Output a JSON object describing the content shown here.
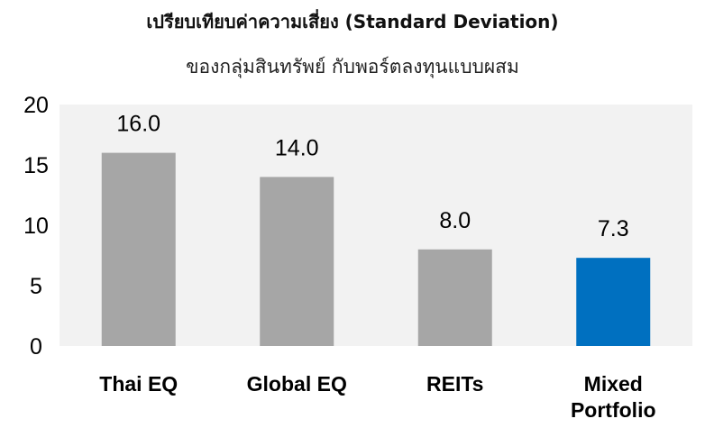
{
  "chart_data": {
    "type": "bar",
    "title": "เปรียบเทียบค่าความเสี่ยง (Standard Deviation)",
    "subtitle": "ของกลุ่มสินทรัพย์ กับพอร์ตลงทุนแบบผสม",
    "categories": [
      "Thai EQ",
      "Global EQ",
      "REITs",
      "Mixed Portfolio"
    ],
    "category_lines": [
      [
        "Thai EQ"
      ],
      [
        "Global EQ"
      ],
      [
        "REITs"
      ],
      [
        "Mixed",
        "Portfolio"
      ]
    ],
    "values": [
      16.0,
      14.0,
      8.0,
      7.3
    ],
    "data_labels": [
      "16.0",
      "14.0",
      "8.0",
      "7.3"
    ],
    "bar_colors": [
      "#a6a6a6",
      "#a6a6a6",
      "#a6a6a6",
      "#0070c0"
    ],
    "ylim": [
      0,
      20
    ],
    "yticks": [
      0,
      5,
      10,
      15,
      20
    ],
    "plot_background": "#f2f2f2",
    "grid": false,
    "xlabel": "",
    "ylabel": ""
  }
}
